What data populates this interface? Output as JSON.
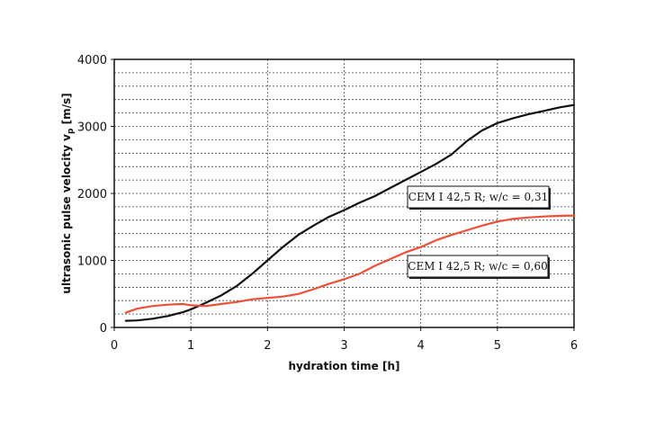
{
  "chart_data": {
    "type": "line",
    "xlabel": "hydration time [h]",
    "ylabel": "ultrasonic pulse velocity vp [m/s]",
    "xlim": [
      0,
      6
    ],
    "ylim": [
      0,
      4000
    ],
    "x_ticks": [
      "0",
      "1",
      "2",
      "3",
      "4",
      "5",
      "6"
    ],
    "y_ticks": [
      "0",
      "1000",
      "2000",
      "3000",
      "4000"
    ],
    "grid": "dotted; vertical every 1 h, horizontal every 200 m/s",
    "series": [
      {
        "name": "CEM I 42,5 R; w/c = 0,31",
        "color": "#111111",
        "x": [
          0.15,
          0.3,
          0.5,
          0.7,
          0.9,
          1.0,
          1.1,
          1.2,
          1.4,
          1.6,
          1.8,
          2.0,
          2.2,
          2.4,
          2.6,
          2.8,
          3.0,
          3.2,
          3.4,
          3.6,
          3.8,
          4.0,
          4.2,
          4.4,
          4.6,
          4.8,
          5.0,
          5.2,
          5.4,
          5.6,
          5.8,
          6.0
        ],
        "y": [
          100,
          105,
          130,
          170,
          230,
          270,
          320,
          370,
          480,
          620,
          800,
          1000,
          1200,
          1380,
          1520,
          1650,
          1750,
          1860,
          1960,
          2080,
          2200,
          2320,
          2440,
          2580,
          2780,
          2940,
          3050,
          3120,
          3180,
          3230,
          3280,
          3320
        ]
      },
      {
        "name": "CEM I 42,5 R; w/c = 0,60",
        "color": "#ee4f36",
        "x": [
          0.15,
          0.3,
          0.5,
          0.7,
          0.9,
          1.0,
          1.2,
          1.4,
          1.6,
          1.8,
          2.0,
          2.2,
          2.4,
          2.6,
          2.8,
          3.0,
          3.2,
          3.4,
          3.6,
          3.8,
          4.0,
          4.2,
          4.4,
          4.6,
          4.8,
          5.0,
          5.2,
          5.4,
          5.6,
          5.8,
          6.0
        ],
        "y": [
          220,
          280,
          320,
          340,
          350,
          330,
          320,
          350,
          380,
          420,
          440,
          460,
          500,
          570,
          650,
          720,
          800,
          920,
          1020,
          1120,
          1200,
          1300,
          1380,
          1450,
          1520,
          1580,
          1620,
          1640,
          1655,
          1665,
          1670
        ]
      }
    ],
    "annotations": [
      {
        "text": "CEM I 42,5 R; w/c = 0,31",
        "series": 0
      },
      {
        "text": "CEM I 42,5 R; w/c = 0,60",
        "series": 1
      }
    ]
  }
}
